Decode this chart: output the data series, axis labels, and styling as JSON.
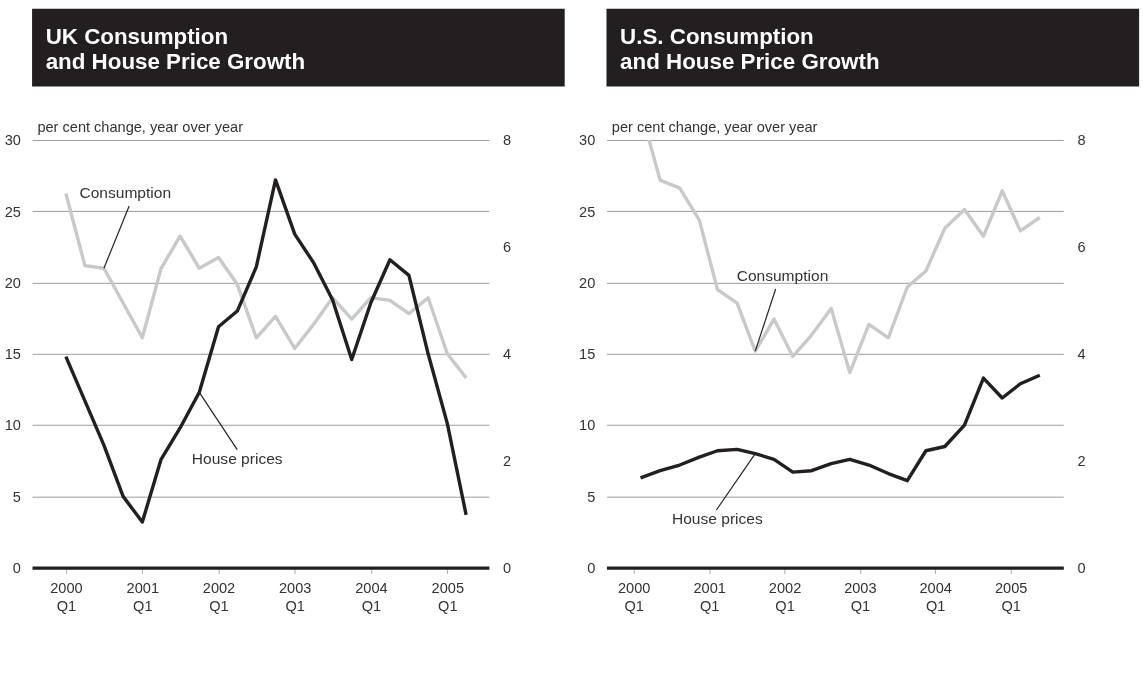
{
  "chart_data": [
    {
      "type": "line",
      "title": "UK Consumption\nand House Price Growth",
      "ylabel": "per cent change, year over year",
      "grid": "y",
      "xlim": [
        "1999-07-23",
        "2005-07-19"
      ],
      "xticks": [
        {
          "value": "2000-01-01",
          "label": "2000\nQ1"
        },
        {
          "value": "2001-01-01",
          "label": "2001\nQ1"
        },
        {
          "value": "2002-01-01",
          "label": "2002\nQ1"
        },
        {
          "value": "2003-01-01",
          "label": "2003\nQ1"
        },
        {
          "value": "2004-01-01",
          "label": "2004\nQ1"
        },
        {
          "value": "2005-01-01",
          "label": "2005\nQ1"
        }
      ],
      "ylim": [
        0,
        30
      ],
      "yticks": [
        0,
        5,
        10,
        15,
        20,
        25,
        30
      ],
      "y2lim": [
        0,
        8
      ],
      "y2ticks": [
        0,
        2,
        4,
        6,
        8
      ],
      "series": [
        {
          "name": "Consumption",
          "color": "#c8c9ca",
          "axis": "y2",
          "x": [
            "2000-01-01",
            "2000-04-01",
            "2000-07-01",
            "2000-10-01",
            "2001-01-01",
            "2001-04-01",
            "2001-07-01",
            "2001-10-01",
            "2002-01-01",
            "2002-04-01",
            "2002-07-01",
            "2002-10-01",
            "2003-01-01",
            "2003-04-01",
            "2003-07-01",
            "2003-10-01",
            "2004-01-01",
            "2004-04-01",
            "2004-07-01",
            "2004-10-01",
            "2005-01-01",
            "2005-04-01"
          ],
          "values": [
            7.0,
            5.65,
            5.6,
            4.95,
            4.3,
            5.6,
            6.2,
            5.6,
            5.8,
            5.3,
            4.3,
            4.7,
            4.1,
            4.55,
            5.05,
            4.65,
            5.05,
            5.0,
            4.75,
            5.05,
            4.0,
            3.55
          ]
        },
        {
          "name": "House prices",
          "color": "#231f20",
          "x": [
            "2000-01-01",
            "2000-04-01",
            "2000-07-01",
            "2000-10-01",
            "2001-01-01",
            "2001-04-01",
            "2001-07-01",
            "2001-10-01",
            "2002-01-01",
            "2002-04-01",
            "2002-07-01",
            "2002-10-01",
            "2003-01-01",
            "2003-04-01",
            "2003-07-01",
            "2003-10-01",
            "2004-01-01",
            "2004-04-01",
            "2004-07-01",
            "2004-10-01",
            "2005-01-01",
            "2005-04-01"
          ],
          "values": [
            14.8,
            11.7,
            8.6,
            5.0,
            3.2,
            7.6,
            9.8,
            12.3,
            16.9,
            18.0,
            21.1,
            27.2,
            23.4,
            21.4,
            18.8,
            14.6,
            18.6,
            21.6,
            20.5,
            15.0,
            10.1,
            3.7
          ]
        }
      ]
    },
    {
      "type": "line",
      "title": "U.S. Consumption\nand House Price Growth",
      "ylabel": "per cent change, year over year",
      "grid": "y",
      "xlim": [
        "1999-08-22",
        "2005-09-13"
      ],
      "xticks": [
        {
          "value": "2000-01-01",
          "label": "2000\nQ1"
        },
        {
          "value": "2001-01-01",
          "label": "2001\nQ1"
        },
        {
          "value": "2002-01-01",
          "label": "2002\nQ1"
        },
        {
          "value": "2003-01-01",
          "label": "2003\nQ1"
        },
        {
          "value": "2004-01-01",
          "label": "2004\nQ1"
        },
        {
          "value": "2005-01-01",
          "label": "2005\nQ1"
        }
      ],
      "ylim": [
        0,
        30
      ],
      "yticks": [
        0,
        5,
        10,
        15,
        20,
        25,
        30
      ],
      "y2lim": [
        0,
        8
      ],
      "y2ticks": [
        0,
        2,
        4,
        6,
        8
      ],
      "series": [
        {
          "name": "Consumption",
          "color": "#c8c9ca",
          "axis": "y2",
          "x": [
            "2000-03-15",
            "2000-05-08",
            "2000-08-11",
            "2000-11-14",
            "2001-02-10",
            "2001-05-16",
            "2001-08-12",
            "2001-11-11",
            "2002-02-10",
            "2002-05-12",
            "2002-08-15",
            "2002-11-13",
            "2003-02-14",
            "2003-05-19",
            "2003-08-19",
            "2003-11-17",
            "2004-02-17",
            "2004-05-22",
            "2004-08-22",
            "2004-11-21",
            "2005-02-17",
            "2005-05-22"
          ],
          "values": [
            8.0,
            7.25,
            7.1,
            6.5,
            5.2,
            4.95,
            4.05,
            4.65,
            3.95,
            4.35,
            4.85,
            3.65,
            4.55,
            4.3,
            5.25,
            5.55,
            6.35,
            6.7,
            6.2,
            7.05,
            6.3,
            6.55
          ]
        },
        {
          "name": "House prices",
          "color": "#231f20",
          "x": [
            "2000-02-03",
            "2000-05-08",
            "2000-08-11",
            "2000-11-14",
            "2001-02-10",
            "2001-05-16",
            "2001-08-12",
            "2001-11-11",
            "2002-02-10",
            "2002-05-12",
            "2002-08-15",
            "2002-11-13",
            "2003-02-14",
            "2003-05-19",
            "2003-08-19",
            "2003-11-17",
            "2004-02-17",
            "2004-05-22",
            "2004-08-22",
            "2004-11-21",
            "2005-02-17",
            "2005-05-22"
          ],
          "values": [
            6.3,
            6.8,
            7.2,
            7.75,
            8.2,
            8.3,
            8.0,
            7.6,
            6.7,
            6.8,
            7.3,
            7.6,
            7.2,
            6.6,
            6.1,
            8.2,
            8.5,
            10.0,
            13.3,
            11.9,
            12.9,
            13.5
          ]
        }
      ]
    }
  ]
}
